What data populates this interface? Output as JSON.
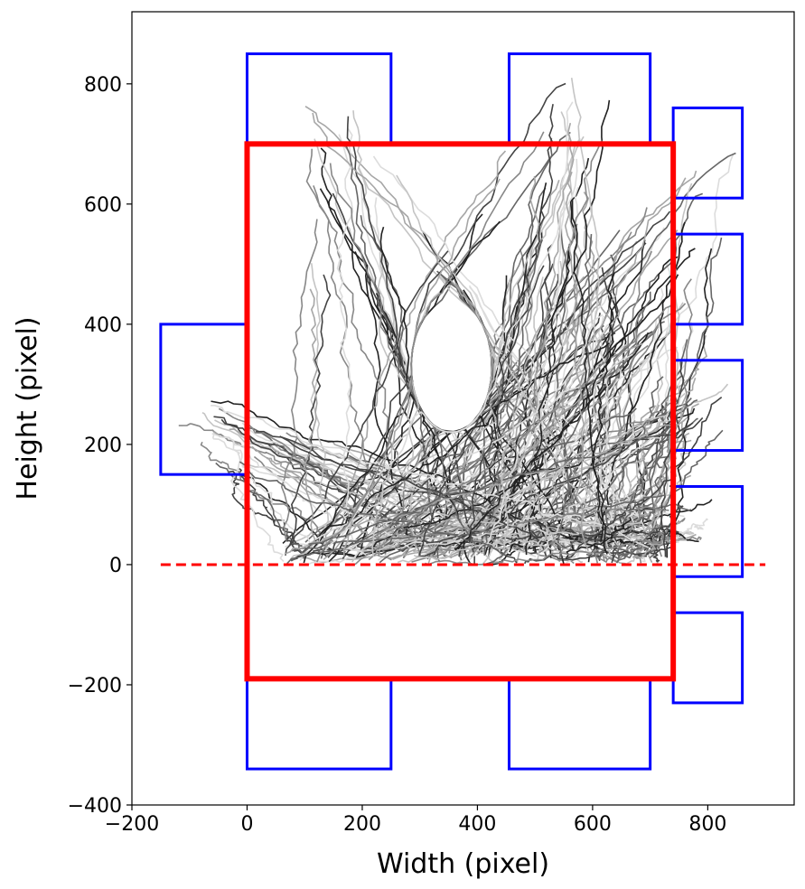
{
  "chart_data": {
    "type": "line",
    "title": "",
    "xlabel": "Width (pixel)",
    "ylabel": "Height (pixel)",
    "xlim": [
      -200,
      950
    ],
    "ylim": [
      -400,
      920
    ],
    "x_ticks": [
      {
        "value": -200,
        "label": "−200"
      },
      {
        "value": 0,
        "label": "0"
      },
      {
        "value": 200,
        "label": "200"
      },
      {
        "value": 400,
        "label": "400"
      },
      {
        "value": 600,
        "label": "600"
      },
      {
        "value": 800,
        "label": "800"
      }
    ],
    "y_ticks": [
      {
        "value": -400,
        "label": "−400"
      },
      {
        "value": -200,
        "label": "−200"
      },
      {
        "value": 0,
        "label": "0"
      },
      {
        "value": 200,
        "label": "200"
      },
      {
        "value": 400,
        "label": "400"
      },
      {
        "value": 600,
        "label": "600"
      },
      {
        "value": 800,
        "label": "800"
      }
    ],
    "grid": false,
    "colors": {
      "arena_border": "#ff0000",
      "zones": "#0000ff",
      "baseline": "#ff0000",
      "trajectories": [
        "#222222",
        "#444444",
        "#666666",
        "#888888",
        "#a6a6a6",
        "#c4c4c4",
        "#dcdcdc"
      ]
    },
    "arena_rect": {
      "x0": 0,
      "y0": -190,
      "x1": 740,
      "y1": 700
    },
    "baseline": {
      "y": 0,
      "x0": -150,
      "x1": 900,
      "style": "dashed"
    },
    "zones": [
      {
        "x0": 0,
        "y0": 700,
        "x1": 250,
        "y1": 850
      },
      {
        "x0": 455,
        "y0": 700,
        "x1": 700,
        "y1": 850
      },
      {
        "x0": 0,
        "y0": -340,
        "x1": 250,
        "y1": -190
      },
      {
        "x0": 455,
        "y0": -340,
        "x1": 700,
        "y1": -190
      },
      {
        "x0": -150,
        "y0": 150,
        "x1": 0,
        "y1": 400
      },
      {
        "x0": 740,
        "y0": 610,
        "x1": 860,
        "y1": 760
      },
      {
        "x0": 740,
        "y0": 400,
        "x1": 860,
        "y1": 550
      },
      {
        "x0": 740,
        "y0": 190,
        "x1": 860,
        "y1": 340
      },
      {
        "x0": 740,
        "y0": -20,
        "x1": 860,
        "y1": 130
      },
      {
        "x0": 740,
        "y0": -230,
        "x1": 860,
        "y1": -80
      }
    ],
    "trajectories": {
      "count": 300,
      "start_y_range": [
        0,
        40
      ],
      "start_x_range": [
        60,
        730
      ],
      "targets": [
        {
          "x": 125,
          "y": 790
        },
        {
          "x": 580,
          "y": 790
        },
        {
          "x": -100,
          "y": 260
        },
        {
          "x": 800,
          "y": 680
        },
        {
          "x": 800,
          "y": 470
        },
        {
          "x": 800,
          "y": 290
        },
        {
          "x": 790,
          "y": 90
        }
      ],
      "avoid_center": {
        "x": 355,
        "y": 330,
        "rx": 70,
        "ry": 110
      }
    }
  }
}
